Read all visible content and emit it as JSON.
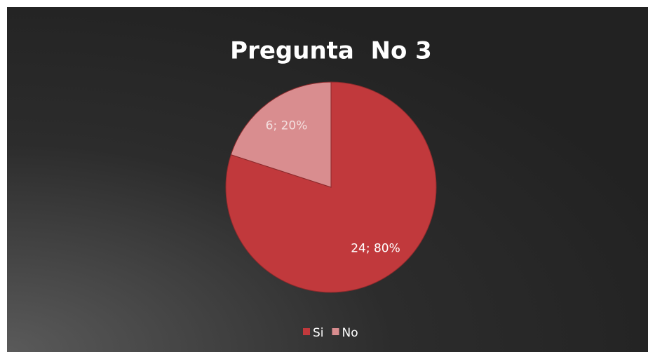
{
  "chart_data": {
    "type": "pie",
    "title": "Pregunta  No 3",
    "categories": [
      "Si",
      "No"
    ],
    "values": [
      24,
      6
    ],
    "value_labels": [
      "24; 80%",
      "6; 20%"
    ],
    "colors": [
      "#c1393c",
      "#d98d8f"
    ],
    "legend": "bottom"
  }
}
